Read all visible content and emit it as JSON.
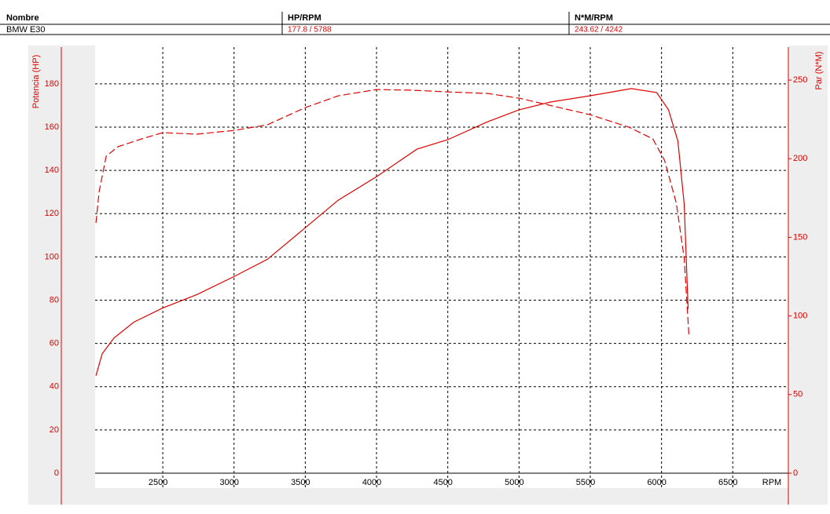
{
  "header": {
    "columns": [
      {
        "label": "Nombre",
        "value": "BMW E30"
      },
      {
        "label": "HP/RPM",
        "value": "177.8 / 5788"
      },
      {
        "label": "N*M/RPM",
        "value": "243.62 / 4242"
      }
    ]
  },
  "chart_data": {
    "type": "line",
    "x_label": "RPM",
    "y_label": "Potencia (HP)",
    "y2_label": "Par (N*M)",
    "xlim": [
      2025,
      6890
    ],
    "xticks": [
      2500,
      3000,
      3500,
      4000,
      4500,
      5000,
      5500,
      6000,
      6500
    ],
    "ylim": [
      0,
      197
    ],
    "yticks": [
      0,
      20,
      40,
      60,
      80,
      100,
      120,
      140,
      160,
      180
    ],
    "y2lim": [
      0,
      271
    ],
    "y2ticks": [
      0,
      50,
      100,
      150,
      200,
      250
    ],
    "grid": true,
    "axis_color": "#e00000",
    "series": [
      {
        "name": "HP",
        "color": "#e00000",
        "dash": false,
        "x": [
          2031,
          2075,
          2158,
          2296,
          2500,
          2737,
          3000,
          3234,
          3500,
          3731,
          4000,
          4283,
          4500,
          4781,
          5000,
          5221,
          5500,
          5788,
          5966,
          6049,
          6115,
          6159,
          6187
        ],
        "values": [
          45.1,
          55.3,
          62.5,
          69.8,
          76.4,
          82.5,
          90.9,
          98.9,
          113.5,
          126.2,
          137.1,
          149.8,
          154.2,
          162.5,
          168,
          171.6,
          174.5,
          177.8,
          176,
          168,
          153.5,
          124.4,
          76
        ]
      },
      {
        "name": "N*M",
        "color": "#e00000",
        "dash": true,
        "axis": "y2",
        "x": [
          2031,
          2053,
          2103,
          2185,
          2351,
          2500,
          2737,
          3000,
          3234,
          3500,
          3731,
          4000,
          4242,
          4500,
          4781,
          5000,
          5500,
          5773,
          5939,
          6021,
          6104,
          6159,
          6192
        ],
        "values": [
          159.2,
          179,
          201.6,
          207.6,
          212.6,
          216.6,
          215.6,
          218,
          221.6,
          232.5,
          240,
          244,
          243.62,
          242.5,
          241.5,
          238.5,
          228,
          220,
          212.6,
          199,
          171.7,
          136.7,
          87.8
        ]
      }
    ]
  }
}
